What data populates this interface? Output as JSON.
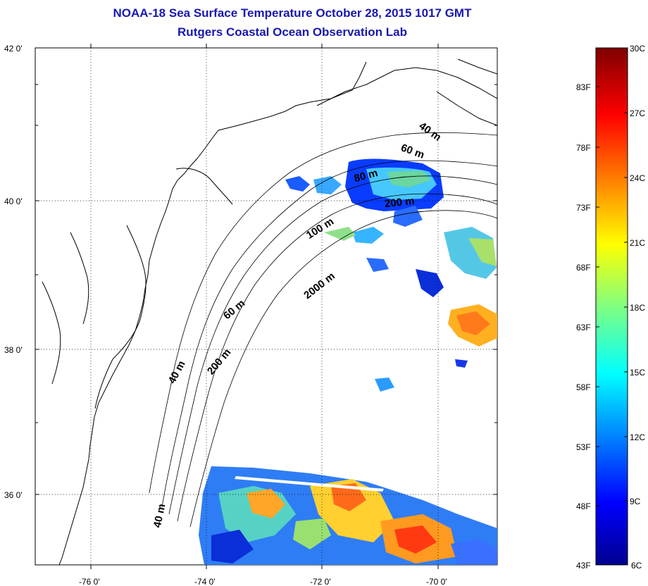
{
  "title": {
    "line1": "NOAA-18 Sea Surface Temperature October 28, 2015 1017 GMT",
    "line2": "Rutgers Coastal Ocean Observation Lab"
  },
  "axes": {
    "lat_ticks": [
      {
        "value": 42,
        "label": "42 0'"
      },
      {
        "value": 40,
        "label": "40 0'"
      },
      {
        "value": 38,
        "label": "38 0'"
      },
      {
        "value": 36,
        "label": "36 0'"
      }
    ],
    "lon_ticks": [
      {
        "value": -76,
        "label": "-76 0'"
      },
      {
        "value": -74,
        "label": "-74 0'"
      },
      {
        "value": -72,
        "label": "-72 0'"
      },
      {
        "value": -70,
        "label": "-70 0'"
      }
    ]
  },
  "contour_labels": [
    {
      "id": "c40-north",
      "text": "40 m"
    },
    {
      "id": "c60-north",
      "text": "60 m"
    },
    {
      "id": "c80",
      "text": "80 m"
    },
    {
      "id": "c200-north",
      "text": "200 m"
    },
    {
      "id": "c100",
      "text": "100 m"
    },
    {
      "id": "c2000",
      "text": "2000 m"
    },
    {
      "id": "c60-mid",
      "text": "60 m"
    },
    {
      "id": "c200-south",
      "text": "200 m"
    },
    {
      "id": "c40-mid",
      "text": "40 m"
    },
    {
      "id": "c40-south",
      "text": "40 m"
    }
  ],
  "colorbar": {
    "celsius": [
      "30C",
      "27C",
      "24C",
      "21C",
      "18C",
      "15C",
      "12C",
      "9C",
      "6C"
    ],
    "fahrenheit": [
      "83F",
      "78F",
      "73F",
      "68F",
      "63F",
      "58F",
      "53F",
      "48F",
      "43F"
    ],
    "colors": [
      "#7f0000",
      "#ff0000",
      "#ff8000",
      "#ffff00",
      "#80ff80",
      "#00ffff",
      "#0080ff",
      "#0000ff",
      "#00008f"
    ]
  }
}
